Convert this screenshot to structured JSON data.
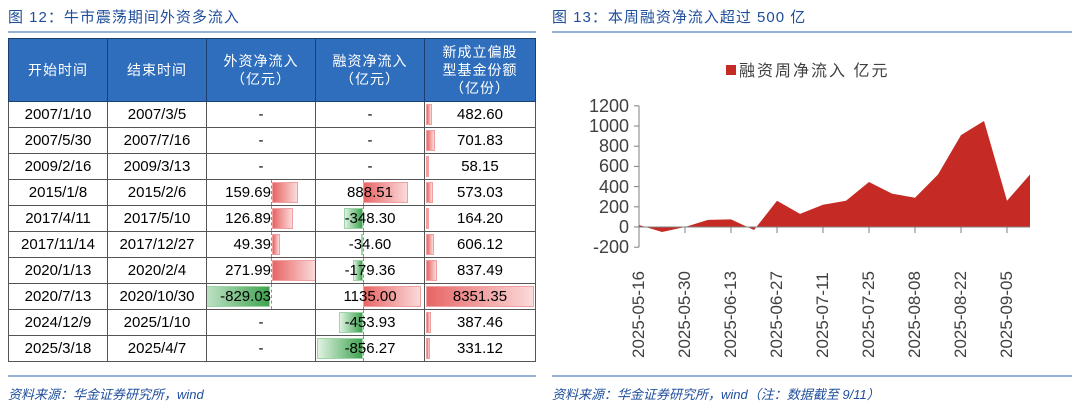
{
  "left_figure": {
    "title_prefix": "图 ",
    "title_number": "12",
    "title_text": "：牛市震荡期间外资多流入",
    "table": {
      "headers": [
        {
          "line1": "开始时间",
          "line2": "",
          "line3": ""
        },
        {
          "line1": "结束时间",
          "line2": "",
          "line3": ""
        },
        {
          "line1": "外资净流入",
          "line2": "（亿元）",
          "line3": ""
        },
        {
          "line1": "融资净流入",
          "line2": "（亿元）",
          "line3": ""
        },
        {
          "line1": "新成立偏股",
          "line2": "型基金份额",
          "line3": "（亿份）"
        }
      ],
      "rows": [
        {
          "start": "2007/1/10",
          "end": "2007/3/5",
          "foreign": "-",
          "margin": "-",
          "fund": "482.60"
        },
        {
          "start": "2007/5/30",
          "end": "2007/7/16",
          "foreign": "-",
          "margin": "-",
          "fund": "701.83"
        },
        {
          "start": "2009/2/16",
          "end": "2009/3/13",
          "foreign": "-",
          "margin": "-",
          "fund": "58.15"
        },
        {
          "start": "2015/1/8",
          "end": "2015/2/6",
          "foreign": "159.69",
          "margin": "888.51",
          "fund": "573.03"
        },
        {
          "start": "2017/4/11",
          "end": "2017/5/10",
          "foreign": "126.89",
          "margin": "-348.30",
          "fund": "164.20"
        },
        {
          "start": "2017/11/14",
          "end": "2017/12/27",
          "foreign": "49.39",
          "margin": "-34.60",
          "fund": "606.12"
        },
        {
          "start": "2020/1/13",
          "end": "2020/2/4",
          "foreign": "271.99",
          "margin": "-179.36",
          "fund": "837.49"
        },
        {
          "start": "2020/7/13",
          "end": "2020/10/30",
          "foreign": "-829.03",
          "margin": "1135.00",
          "fund": "8351.35"
        },
        {
          "start": "2024/12/9",
          "end": "2025/1/10",
          "foreign": "-",
          "margin": "-453.93",
          "fund": "387.46"
        },
        {
          "start": "2025/3/18",
          "end": "2025/4/7",
          "foreign": "-",
          "margin": "-856.27",
          "fund": "331.12"
        }
      ]
    },
    "source": "资料来源：华金证券研究所，wind"
  },
  "right_figure": {
    "title_prefix": "图 ",
    "title_number": "13",
    "title_text": "：本周融资净流入超过 500 亿",
    "source": "资料来源：华金证券研究所，wind（注：数据截至 9/11）"
  },
  "colors": {
    "header_bg": "#2e6ebc",
    "title_blue": "#1f4e9c",
    "area_red": "#c62a24",
    "bar_positive": "#e86565",
    "bar_negative": "#3fa350"
  },
  "chart_data": {
    "type": "area",
    "title": "本周融资净流入超过 500 亿",
    "legend": [
      "融资周净流入 亿元"
    ],
    "legend_position": "top",
    "xlabel": "",
    "ylabel": "",
    "ylim": [
      -200,
      1200
    ],
    "yticks": [
      -200,
      0,
      200,
      400,
      600,
      800,
      1000,
      1200
    ],
    "grid": false,
    "x_tick_labels": [
      "2025-05-16",
      "2025-05-30",
      "2025-06-13",
      "2025-06-27",
      "2025-07-11",
      "2025-07-25",
      "2025-08-08",
      "2025-08-22",
      "2025-09-05"
    ],
    "x": [
      "2025-05-16",
      "2025-05-23",
      "2025-05-30",
      "2025-06-06",
      "2025-06-13",
      "2025-06-20",
      "2025-06-27",
      "2025-07-04",
      "2025-07-11",
      "2025-07-18",
      "2025-07-25",
      "2025-08-01",
      "2025-08-08",
      "2025-08-15",
      "2025-08-22",
      "2025-08-29",
      "2025-09-05",
      "2025-09-11"
    ],
    "series": [
      {
        "name": "融资周净流入 亿元",
        "values": [
          20,
          -50,
          0,
          70,
          75,
          -30,
          260,
          130,
          220,
          260,
          445,
          330,
          290,
          520,
          910,
          1050,
          260,
          520
        ]
      }
    ]
  }
}
